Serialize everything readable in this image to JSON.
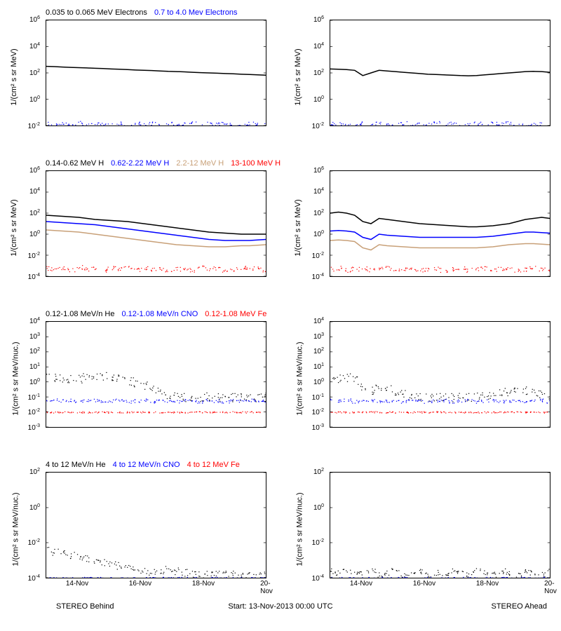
{
  "colors": {
    "black": "#000000",
    "blue": "#0000ff",
    "tan": "#c8a078",
    "red": "#ff0000",
    "bg": "#ffffff"
  },
  "xaxis": {
    "ticks": [
      "14-Nov",
      "16-Nov",
      "18-Nov",
      "20-Nov"
    ],
    "range_days": 7
  },
  "footer": {
    "left": "STEREO Behind",
    "center": "Start: 13-Nov-2013 00:00 UTC",
    "right": "STEREO Ahead"
  },
  "rows": [
    {
      "ylabel": "1/(cm² s sr MeV)",
      "yticks_exp": [
        -2,
        0,
        2,
        4,
        6
      ],
      "legend": [
        {
          "text": "0.035 to 0.065 MeV Electrons",
          "color": "#000000"
        },
        {
          "text": "0.7 to 4.0 Mev Electrons",
          "color": "#0000ff"
        }
      ],
      "left": {
        "series": [
          {
            "color": "#000000",
            "type": "line",
            "y": [
              2.5,
              2.48,
              2.45,
              2.42,
              2.4,
              2.38,
              2.35,
              2.33,
              2.3,
              2.28,
              2.25,
              2.22,
              2.2,
              2.18,
              2.15,
              2.12,
              2.1,
              2.08,
              2.05,
              2.02,
              2.0,
              1.98,
              1.95,
              1.93,
              1.9,
              1.88,
              1.85,
              1.83
            ]
          },
          {
            "color": "#0000ff",
            "type": "scatter",
            "y": [
              -1.8,
              -1.9,
              -1.85,
              -1.95,
              -1.8,
              -2.0,
              -1.85,
              -1.9,
              -1.95,
              -1.8,
              -2.0,
              -1.85,
              -1.9,
              -1.8,
              -2.0,
              -1.85,
              -1.95,
              -1.9,
              -1.8,
              -2.0,
              -1.85,
              -1.9,
              -1.8,
              -1.95,
              -2.0,
              -1.85,
              -1.9,
              -1.95
            ],
            "jitter": 0.15
          }
        ]
      },
      "right": {
        "series": [
          {
            "color": "#000000",
            "type": "line",
            "y": [
              2.3,
              2.28,
              2.25,
              2.2,
              1.8,
              2.0,
              2.2,
              2.15,
              2.1,
              2.05,
              2.0,
              1.95,
              1.9,
              1.88,
              1.85,
              1.83,
              1.8,
              1.78,
              1.8,
              1.85,
              1.9,
              1.95,
              2.0,
              2.05,
              2.1,
              2.12,
              2.1,
              2.05
            ]
          },
          {
            "color": "#0000ff",
            "type": "scatter",
            "y": [
              -1.8,
              -1.9,
              -1.85,
              -1.95,
              -1.8,
              -2.0,
              -1.85,
              -1.9,
              -1.95,
              -1.8,
              -2.0,
              -1.85,
              -1.9,
              -1.8,
              -2.0,
              -1.85,
              -1.95,
              -1.9,
              -1.8,
              -2.0,
              -1.85,
              -1.9,
              -1.8,
              -1.95,
              -2.0,
              -1.85,
              -1.9,
              -1.95
            ],
            "jitter": 0.15
          }
        ]
      }
    },
    {
      "ylabel": "1/(cm² s sr MeV)",
      "yticks_exp": [
        -4,
        -2,
        0,
        2,
        4,
        6
      ],
      "legend": [
        {
          "text": "0.14-0.62 MeV H",
          "color": "#000000"
        },
        {
          "text": "0.62-2.22 MeV H",
          "color": "#0000ff"
        },
        {
          "text": "2.2-12 MeV H",
          "color": "#c8a078"
        },
        {
          "text": "13-100 MeV H",
          "color": "#ff0000"
        }
      ],
      "left": {
        "series": [
          {
            "color": "#000000",
            "type": "line",
            "y": [
              1.8,
              1.75,
              1.7,
              1.65,
              1.6,
              1.5,
              1.4,
              1.35,
              1.3,
              1.25,
              1.2,
              1.1,
              1.0,
              0.9,
              0.8,
              0.7,
              0.6,
              0.5,
              0.4,
              0.3,
              0.2,
              0.15,
              0.1,
              0.05,
              0.0,
              0.0,
              0.0,
              0.0
            ]
          },
          {
            "color": "#0000ff",
            "type": "line",
            "y": [
              1.2,
              1.15,
              1.1,
              1.05,
              1.0,
              0.95,
              0.9,
              0.8,
              0.7,
              0.6,
              0.5,
              0.4,
              0.3,
              0.2,
              0.1,
              0.0,
              -0.1,
              -0.2,
              -0.3,
              -0.4,
              -0.5,
              -0.55,
              -0.6,
              -0.6,
              -0.6,
              -0.6,
              -0.55,
              -0.5
            ]
          },
          {
            "color": "#c8a078",
            "type": "line",
            "y": [
              0.4,
              0.35,
              0.3,
              0.25,
              0.2,
              0.1,
              0.0,
              -0.1,
              -0.2,
              -0.3,
              -0.4,
              -0.5,
              -0.6,
              -0.7,
              -0.8,
              -0.9,
              -1.0,
              -1.05,
              -1.1,
              -1.15,
              -1.2,
              -1.2,
              -1.2,
              -1.15,
              -1.1,
              -1.1,
              -1.05,
              -1.0
            ]
          },
          {
            "color": "#ff0000",
            "type": "scatter",
            "y": [
              -3.2,
              -3.3,
              -3.2,
              -3.4,
              -3.1,
              -3.3,
              -3.2,
              -3.4,
              -3.2,
              -3.3,
              -3.1,
              -3.4,
              -3.2,
              -3.3,
              -3.2,
              -3.4,
              -3.3,
              -3.2,
              -3.4,
              -3.1,
              -3.3,
              -3.2,
              -3.4,
              -3.3,
              -3.2,
              -3.3,
              -3.2,
              -3.4
            ],
            "jitter": 0.2
          }
        ]
      },
      "right": {
        "series": [
          {
            "color": "#000000",
            "type": "line",
            "y": [
              2.0,
              2.1,
              2.0,
              1.8,
              1.2,
              1.0,
              1.5,
              1.4,
              1.3,
              1.2,
              1.1,
              1.0,
              0.95,
              0.9,
              0.85,
              0.8,
              0.75,
              0.7,
              0.7,
              0.75,
              0.8,
              0.9,
              1.0,
              1.2,
              1.4,
              1.5,
              1.6,
              1.5
            ]
          },
          {
            "color": "#0000ff",
            "type": "line",
            "y": [
              0.3,
              0.35,
              0.3,
              0.2,
              -0.3,
              -0.5,
              0.0,
              -0.1,
              -0.15,
              -0.2,
              -0.25,
              -0.3,
              -0.3,
              -0.3,
              -0.3,
              -0.3,
              -0.3,
              -0.3,
              -0.3,
              -0.25,
              -0.2,
              -0.1,
              0.0,
              0.1,
              0.2,
              0.2,
              0.15,
              0.1
            ]
          },
          {
            "color": "#c8a078",
            "type": "line",
            "y": [
              -0.6,
              -0.55,
              -0.6,
              -0.7,
              -1.3,
              -1.5,
              -1.0,
              -1.1,
              -1.15,
              -1.2,
              -1.25,
              -1.3,
              -1.3,
              -1.3,
              -1.3,
              -1.3,
              -1.3,
              -1.3,
              -1.3,
              -1.25,
              -1.2,
              -1.1,
              -1.0,
              -0.95,
              -0.9,
              -0.9,
              -0.95,
              -1.0
            ]
          },
          {
            "color": "#ff0000",
            "type": "scatter",
            "y": [
              -3.3,
              -3.2,
              -3.4,
              -3.3,
              -3.2,
              -3.4,
              -3.3,
              -3.2,
              -3.4,
              -3.3,
              -3.2,
              -3.4,
              -3.3,
              -3.2,
              -3.4,
              -3.3,
              -3.2,
              -3.4,
              -3.3,
              -3.2,
              -3.4,
              -3.3,
              -3.2,
              -3.4,
              -3.3,
              -3.2,
              -3.3,
              -3.4
            ],
            "jitter": 0.2
          }
        ]
      }
    },
    {
      "ylabel": "1/(cm² s sr MeV/nuc.)",
      "yticks_exp": [
        -3,
        -2,
        -1,
        0,
        1,
        2,
        3,
        4
      ],
      "legend": [
        {
          "text": "0.12-1.08 MeV/n He",
          "color": "#000000"
        },
        {
          "text": "0.12-1.08 MeV/n CNO",
          "color": "#0000ff"
        },
        {
          "text": "0.12-1.08 MeV Fe",
          "color": "#ff0000"
        }
      ],
      "left": {
        "series": [
          {
            "color": "#000000",
            "type": "scatter",
            "y": [
              0.4,
              0.35,
              0.3,
              0.25,
              0.2,
              0.3,
              0.4,
              0.35,
              0.3,
              0.2,
              0.1,
              0.0,
              -0.2,
              -0.4,
              -0.6,
              -0.8,
              -0.9,
              -1.0,
              -1.0,
              -1.0,
              -1.0,
              -1.0,
              -1.0,
              -1.0,
              -1.0,
              -1.0,
              -1.0,
              -1.0
            ],
            "jitter": 0.3
          },
          {
            "color": "#0000ff",
            "type": "scatter",
            "y": [
              -1.2,
              -1.2,
              -1.25,
              -1.2,
              -1.3,
              -1.25,
              -1.2,
              -1.3,
              -1.25,
              -1.2,
              -1.3,
              -1.25,
              -1.2,
              -1.3,
              -1.2,
              -1.25,
              -1.3,
              -1.2,
              -1.25,
              -1.3,
              -1.2,
              -1.25,
              -1.3,
              -1.2,
              -1.25,
              -1.2,
              -1.3,
              -1.25
            ],
            "jitter": 0.1
          },
          {
            "color": "#ff0000",
            "type": "scatter",
            "y": [
              -2.0,
              -2.0,
              -2.0,
              -2.0,
              -2.0,
              -2.0,
              -2.0,
              -2.0,
              -2.0,
              -2.0,
              -2.0,
              -2.0,
              -2.0,
              -2.0,
              -2.0,
              -2.0,
              -2.0,
              -2.0,
              -2.0,
              -2.0,
              -2.0,
              -2.0,
              -2.0,
              -2.0,
              -2.0,
              -2.0,
              -2.0,
              -2.0
            ],
            "jitter": 0.05
          }
        ]
      },
      "right": {
        "series": [
          {
            "color": "#000000",
            "type": "scatter",
            "y": [
              0.2,
              0.25,
              0.3,
              0.1,
              -0.3,
              -0.6,
              -0.4,
              -0.5,
              -0.7,
              -0.8,
              -0.9,
              -1.0,
              -1.0,
              -1.0,
              -1.0,
              -1.0,
              -1.0,
              -1.0,
              -1.0,
              -0.9,
              -0.8,
              -0.7,
              -0.6,
              -0.5,
              -0.6,
              -0.7,
              -0.8,
              -0.9
            ],
            "jitter": 0.3
          },
          {
            "color": "#0000ff",
            "type": "scatter",
            "y": [
              -1.2,
              -1.25,
              -1.2,
              -1.3,
              -1.25,
              -1.2,
              -1.3,
              -1.25,
              -1.2,
              -1.3,
              -1.25,
              -1.2,
              -1.3,
              -1.25,
              -1.2,
              -1.3,
              -1.25,
              -1.2,
              -1.3,
              -1.25,
              -1.2,
              -1.3,
              -1.25,
              -1.2,
              -1.3,
              -1.25,
              -1.2,
              -1.3
            ],
            "jitter": 0.1
          },
          {
            "color": "#ff0000",
            "type": "scatter",
            "y": [
              -2.0,
              -2.0,
              -2.0,
              -2.0,
              -2.0,
              -2.0,
              -2.0,
              -2.0,
              -2.0,
              -2.0,
              -2.0,
              -2.0,
              -2.0,
              -2.0,
              -2.0,
              -2.0,
              -2.0,
              -2.0,
              -2.0,
              -2.0,
              -2.0,
              -2.0,
              -2.0,
              -2.0,
              -2.0,
              -2.0,
              -2.0,
              -2.0
            ],
            "jitter": 0.05
          }
        ]
      }
    },
    {
      "ylabel": "1/(cm² s sr MeV/nuc.)",
      "yticks_exp": [
        -4,
        -2,
        0,
        2
      ],
      "legend": [
        {
          "text": "4 to 12 MeV/n He",
          "color": "#000000"
        },
        {
          "text": "4 to 12 MeV/n CNO",
          "color": "#0000ff"
        },
        {
          "text": "4 to 12 MeV Fe",
          "color": "#ff0000"
        }
      ],
      "left": {
        "series": [
          {
            "color": "#000000",
            "type": "scatter",
            "y": [
              -2.4,
              -2.5,
              -2.6,
              -2.7,
              -2.8,
              -2.9,
              -3.0,
              -3.1,
              -3.2,
              -3.3,
              -3.4,
              -3.5,
              -3.6,
              -3.7,
              -3.6,
              -3.5,
              -3.6,
              -3.7,
              -3.8,
              -3.8,
              -3.8,
              -3.8,
              -3.8,
              -3.8,
              -3.8,
              -3.8,
              -3.8,
              -3.8
            ],
            "jitter": 0.2
          },
          {
            "color": "#0000ff",
            "type": "scatter",
            "y": [
              -4.0,
              -4.0,
              -4.0,
              -4.0,
              -4.0,
              -4.0,
              -4.0,
              -4.0,
              -4.0,
              -4.0,
              -4.0,
              -4.0,
              -4.0,
              -4.0,
              -4.0,
              -4.0,
              -4.0,
              -4.0,
              -4.0,
              -4.0,
              -4.0,
              -4.0,
              -4.0,
              -4.0,
              -4.0,
              -4.0,
              -4.0,
              -4.0
            ],
            "jitter": 0.05
          }
        ]
      },
      "right": {
        "series": [
          {
            "color": "#000000",
            "type": "scatter",
            "y": [
              -3.6,
              -3.7,
              -3.6,
              -3.8,
              -3.7,
              -3.6,
              -3.8,
              -3.7,
              -3.6,
              -3.8,
              -3.7,
              -3.6,
              -3.8,
              -3.7,
              -3.8,
              -3.6,
              -3.7,
              -3.8,
              -3.6,
              -3.7,
              -3.8,
              -3.6,
              -3.7,
              -3.8,
              -3.6,
              -3.7,
              -3.8,
              -3.6
            ],
            "jitter": 0.15
          },
          {
            "color": "#0000ff",
            "type": "scatter",
            "y": [
              -4.0,
              -4.0,
              -4.0,
              -4.0,
              -4.0,
              -4.0,
              -4.0,
              -4.0,
              -4.0,
              -4.0,
              -4.0,
              -4.0,
              -4.0,
              -4.0,
              -4.0,
              -4.0,
              -4.0,
              -4.0,
              -4.0,
              -4.0,
              -4.0,
              -4.0,
              -4.0,
              -4.0,
              -4.0,
              -4.0,
              -4.0,
              -4.0
            ],
            "jitter": 0.05
          }
        ]
      }
    }
  ]
}
